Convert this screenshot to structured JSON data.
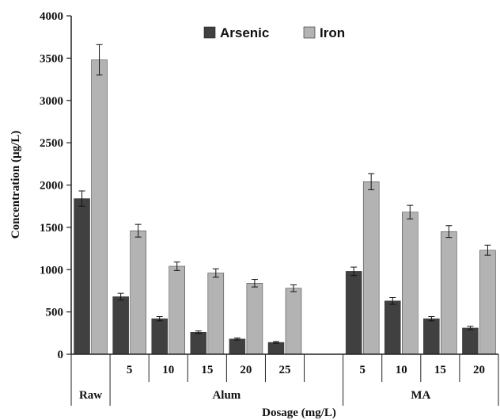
{
  "chart_data": {
    "type": "bar",
    "title": "",
    "xlabel": "Dosage (mg/L)",
    "ylabel": "Concentration (µg/L)",
    "ylim": [
      0,
      4000
    ],
    "yticks": [
      0,
      500,
      1000,
      1500,
      2000,
      2500,
      3000,
      3500,
      4000
    ],
    "grid": false,
    "legend_position": "top-center",
    "categories": [
      "Raw",
      "5",
      "10",
      "15",
      "20",
      "25",
      "",
      "5",
      "10",
      "15",
      "20"
    ],
    "groups": [
      {
        "label": "Raw",
        "start": 0,
        "end": 0
      },
      {
        "label": "Alum",
        "start": 1,
        "end": 6
      },
      {
        "label": "MA",
        "start": 7,
        "end": 10
      }
    ],
    "series": [
      {
        "name": "Arsenic",
        "color": "#404040",
        "values": [
          1840,
          680,
          420,
          260,
          180,
          140,
          null,
          980,
          630,
          420,
          310
        ],
        "errors": [
          90,
          40,
          25,
          15,
          12,
          10,
          null,
          50,
          40,
          25,
          20
        ]
      },
      {
        "name": "Iron",
        "color": "#b3b3b3",
        "values": [
          3480,
          1460,
          1040,
          960,
          840,
          780,
          null,
          2040,
          1680,
          1450,
          1230
        ],
        "errors": [
          180,
          75,
          50,
          50,
          45,
          40,
          null,
          95,
          80,
          70,
          60
        ]
      }
    ]
  }
}
